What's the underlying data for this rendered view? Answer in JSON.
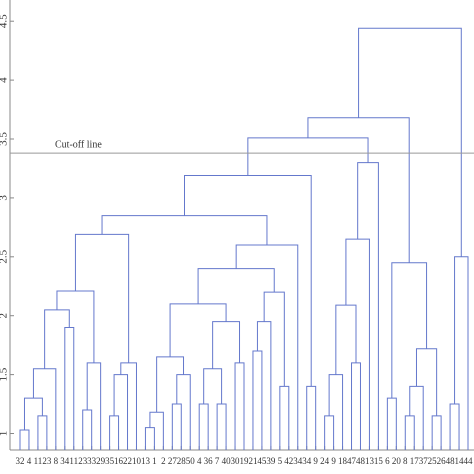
{
  "chart_data": {
    "type": "dendrogram",
    "leaves": [
      "32",
      "4",
      "11",
      "23",
      "8",
      "34",
      "11",
      "23",
      "33",
      "29",
      "35",
      "16",
      "22",
      "10",
      "13",
      "1",
      "2",
      "27",
      "28",
      "50",
      "4",
      "36",
      "7",
      "40",
      "30",
      "19",
      "21",
      "45",
      "39",
      "5",
      "42",
      "34",
      "34",
      "9",
      "24",
      "9",
      "18",
      "47",
      "48",
      "13",
      "15",
      "6",
      "20",
      "8",
      "17",
      "37",
      "25",
      "26",
      "48",
      "14",
      "44"
    ],
    "merges": [
      [
        0,
        1,
        1.03
      ],
      [
        2,
        3,
        1.15
      ],
      [
        51,
        52,
        1.3
      ],
      [
        53,
        4,
        1.55
      ],
      [
        5,
        6,
        1.9
      ],
      [
        54,
        55,
        2.05
      ],
      [
        7,
        8,
        1.2
      ],
      [
        57,
        9,
        1.6
      ],
      [
        56,
        58,
        2.21
      ],
      [
        10,
        11,
        1.15
      ],
      [
        60,
        12,
        1.5
      ],
      [
        61,
        13,
        1.6
      ],
      [
        59,
        62,
        2.69
      ],
      [
        14,
        15,
        1.05
      ],
      [
        64,
        16,
        1.18
      ],
      [
        17,
        18,
        1.25
      ],
      [
        66,
        19,
        1.5
      ],
      [
        65,
        67,
        1.65
      ],
      [
        20,
        21,
        1.25
      ],
      [
        22,
        23,
        1.25
      ],
      [
        69,
        70,
        1.55
      ],
      [
        24,
        25,
        1.6
      ],
      [
        71,
        72,
        1.95
      ],
      [
        68,
        73,
        2.1
      ],
      [
        26,
        27,
        1.7
      ],
      [
        75,
        28,
        1.95
      ],
      [
        29,
        30,
        1.4
      ],
      [
        76,
        77,
        2.2
      ],
      [
        74,
        78,
        2.4
      ],
      [
        79,
        31,
        2.6
      ],
      [
        63,
        80,
        2.85
      ],
      [
        32,
        33,
        1.4
      ],
      [
        34,
        35,
        1.15
      ],
      [
        83,
        36,
        1.5
      ],
      [
        37,
        38,
        1.6
      ],
      [
        84,
        85,
        2.09
      ],
      [
        86,
        39,
        2.65
      ],
      [
        87,
        40,
        3.3
      ],
      [
        81,
        82,
        3.19
      ],
      [
        89,
        88,
        3.51
      ],
      [
        41,
        42,
        1.3
      ],
      [
        43,
        44,
        1.15
      ],
      [
        92,
        45,
        1.4
      ],
      [
        46,
        47,
        1.15
      ],
      [
        93,
        94,
        1.72
      ],
      [
        91,
        95,
        2.45
      ],
      [
        48,
        49,
        1.25
      ],
      [
        97,
        50,
        2.5
      ],
      [
        90,
        96,
        3.68
      ],
      [
        99,
        98,
        4.44
      ]
    ],
    "cutoff": 3.38,
    "annotation": "Cut-off line",
    "ylim": [
      0.86,
      4.68
    ],
    "yticks": [
      1,
      1.5,
      2,
      2.5,
      3,
      3.5,
      4,
      4.5
    ],
    "color": "#6478cc",
    "cutoff_color": "#999999"
  }
}
